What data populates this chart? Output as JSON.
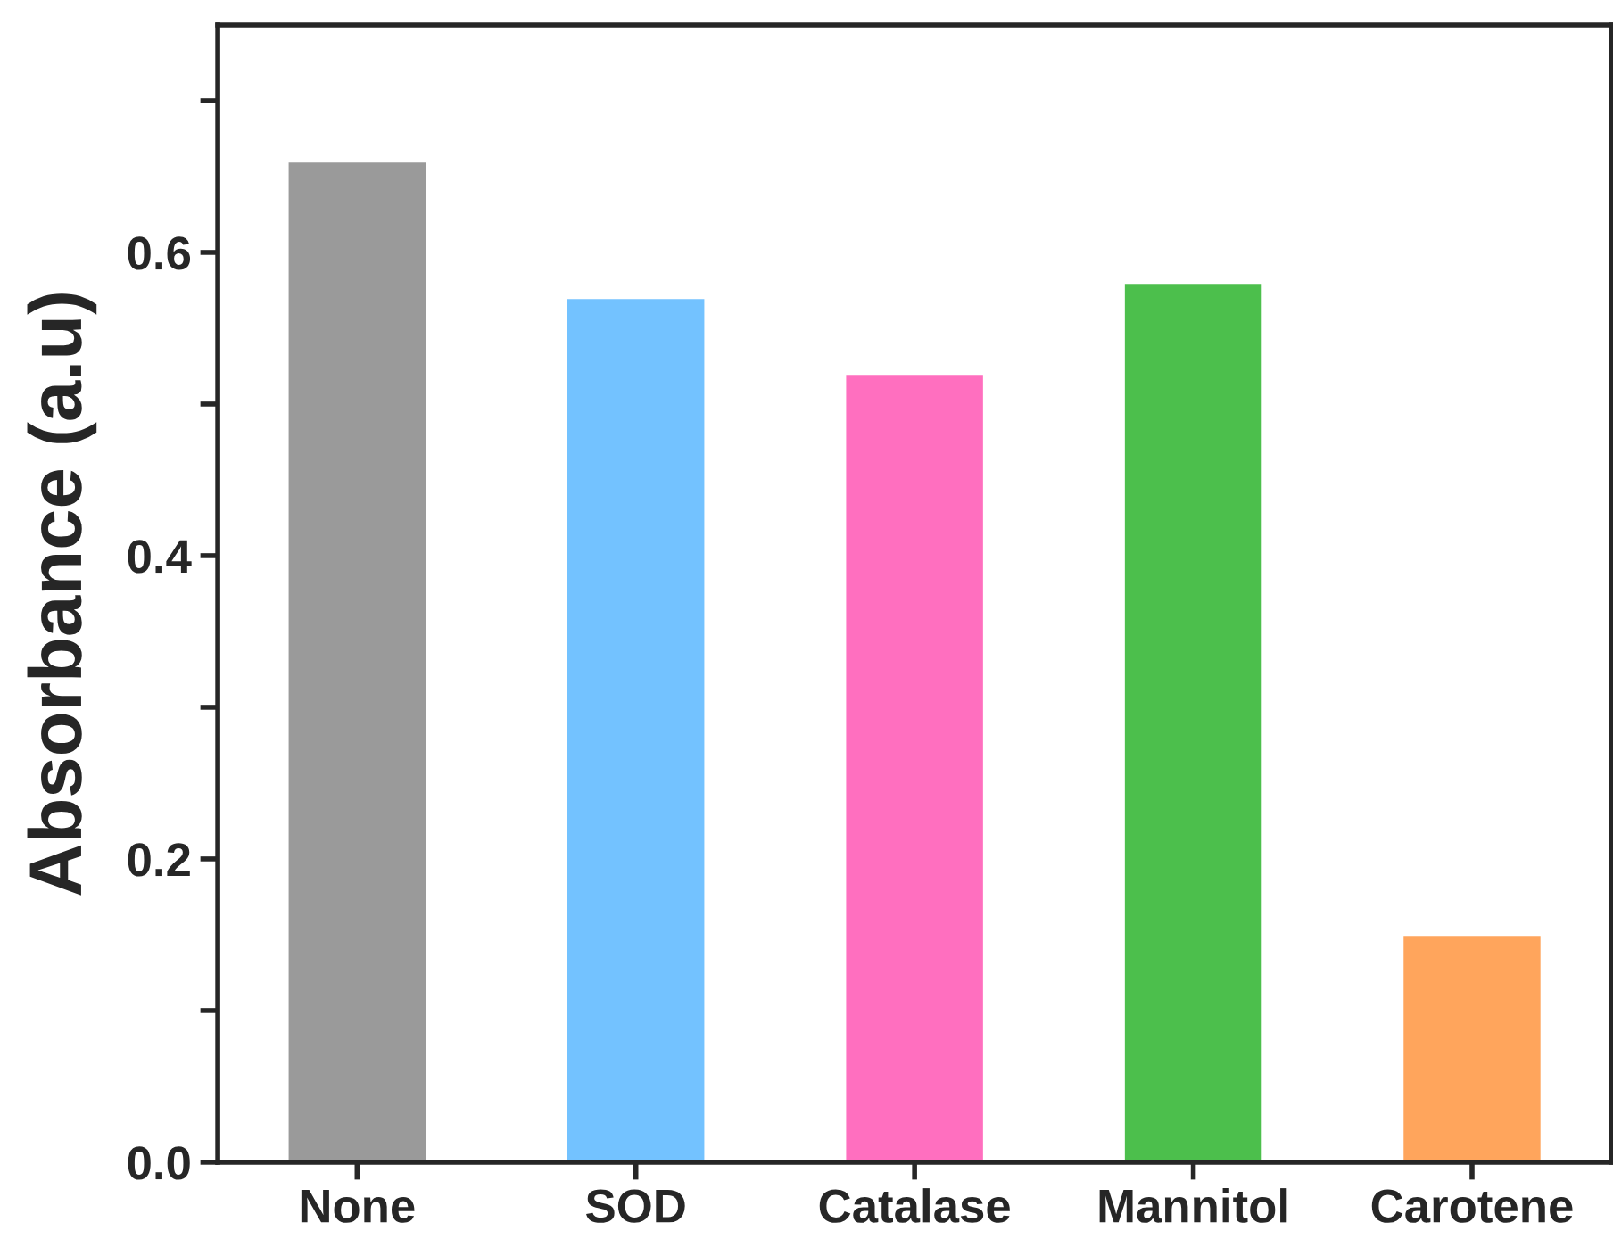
{
  "chart_data": {
    "type": "bar",
    "ylabel": "Absorbance (a.u)",
    "categories": [
      "None",
      "SOD",
      "Catalase",
      "Mannitol",
      "Carotene"
    ],
    "values": [
      0.66,
      0.57,
      0.52,
      0.58,
      0.15
    ],
    "colors": [
      "#9a9a9a",
      "#73c2ff",
      "#ff6fbf",
      "#4cbf4c",
      "#ffa55c"
    ],
    "ylim": [
      0,
      0.75
    ],
    "yticks": [
      {
        "value": 0,
        "label": "0.0"
      },
      {
        "value": 0.1,
        "label": null
      },
      {
        "value": 0.2,
        "label": "0.2"
      },
      {
        "value": 0.3,
        "label": null
      },
      {
        "value": 0.4,
        "label": "0.4"
      },
      {
        "value": 0.5,
        "label": null
      },
      {
        "value": 0.6,
        "label": "0.6"
      },
      {
        "value": 0.7,
        "label": null
      }
    ],
    "grid": false
  }
}
